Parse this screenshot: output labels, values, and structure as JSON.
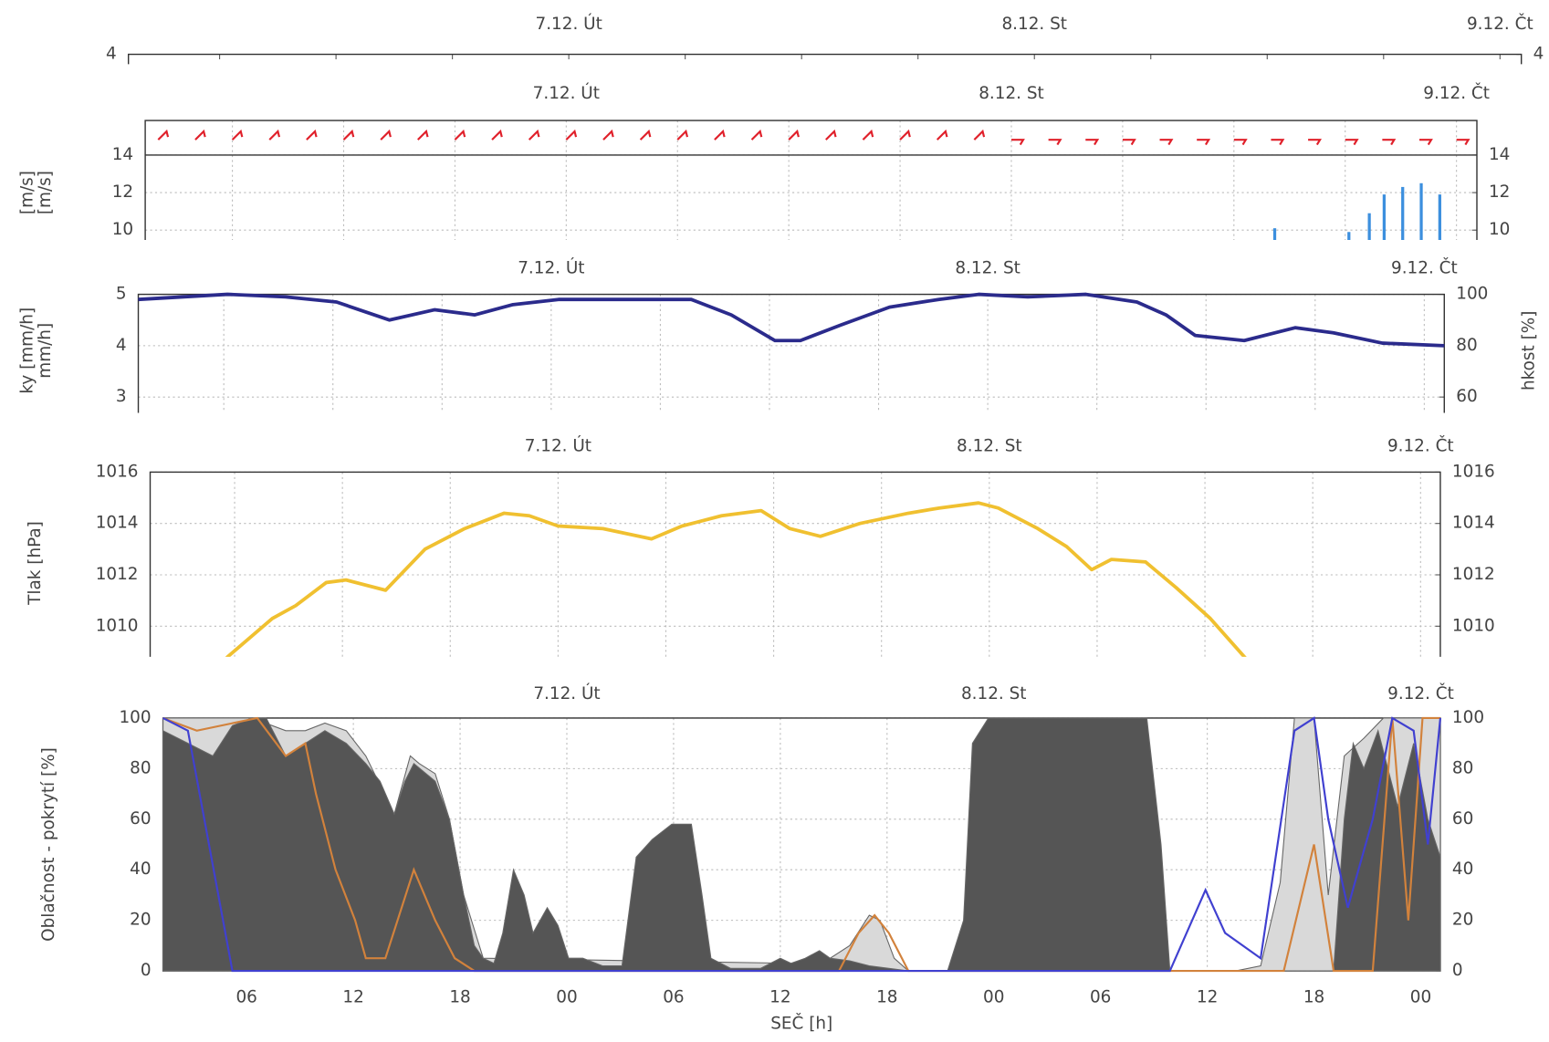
{
  "chart_data": [
    {
      "type": "line",
      "xlim": [
        1.3,
        73.1
      ],
      "date_ticks": [
        {
          "value": 24,
          "label": "7.12. Út"
        },
        {
          "value": 48,
          "label": "8.12. St"
        },
        {
          "value": 72,
          "label": "9.12. Čt"
        }
      ],
      "ylim": [
        0,
        4
      ],
      "yticks": [
        4
      ],
      "y2lim": [
        0,
        4
      ],
      "y2ticks": [
        4
      ]
    },
    {
      "type": "bar",
      "xlim": [
        1.3,
        73.1
      ],
      "grid": true,
      "date_ticks": [
        {
          "value": 24,
          "label": "7.12. Út"
        },
        {
          "value": 48,
          "label": "8.12. St"
        },
        {
          "value": 72,
          "label": "9.12. Čt"
        }
      ],
      "ylabels": [
        "[m/s]",
        "[m/s]"
      ],
      "ylim": [
        0,
        14
      ],
      "yticks": [
        14,
        12,
        10
      ],
      "y2lim": [
        0,
        14
      ],
      "y2ticks": [
        14,
        12,
        10
      ],
      "x": [
        62.2,
        66.2,
        67.3,
        68.1,
        69.1,
        70.1,
        71.1
      ],
      "values": [
        10.1,
        9.9,
        10.9,
        11.9,
        12.3,
        12.5,
        11.9
      ],
      "color": "#3c8fde",
      "barbs": {
        "color": "#e0202a",
        "x": [
          2,
          4,
          6,
          8,
          10,
          12,
          14,
          16,
          18,
          20,
          22,
          24,
          26,
          28,
          30,
          32,
          34,
          36,
          38,
          40,
          42,
          44,
          46,
          48,
          50,
          52,
          54,
          56,
          58,
          60,
          62,
          64,
          66,
          68,
          70,
          72
        ],
        "values": [
          225,
          225,
          225,
          225,
          225,
          225,
          225,
          225,
          225,
          225,
          225,
          225,
          225,
          225,
          225,
          225,
          225,
          225,
          225,
          225,
          225,
          225,
          225,
          270,
          270,
          270,
          270,
          270,
          270,
          270,
          270,
          270,
          270,
          270,
          270,
          270
        ]
      }
    },
    {
      "type": "line",
      "xlim": [
        1.3,
        73.1
      ],
      "grid": true,
      "date_ticks": [
        {
          "value": 24,
          "label": "7.12. Út"
        },
        {
          "value": 48,
          "label": "8.12. St"
        },
        {
          "value": 72,
          "label": "9.12. Čt"
        }
      ],
      "ylabels": [
        "ky [mm/h]",
        "mm/h]"
      ],
      "y2label": "hkost [%]",
      "ylim": [
        0,
        5
      ],
      "yticks": [
        5,
        4,
        3
      ],
      "y2lim": [
        0,
        100
      ],
      "y2ticks": [
        100,
        80,
        60
      ],
      "series": [
        {
          "color": "#2b2b8c",
          "axis": "y2",
          "x": [
            1.3,
            6.2,
            9.4,
            12.2,
            15.1,
            17.6,
            19.8,
            21.9,
            24.4,
            26.8,
            29.5,
            31.7,
            33.9,
            36.3,
            37.7,
            39.9,
            42.6,
            45.3,
            47.5,
            50.2,
            53.4,
            56.2,
            57.8,
            59.4,
            62.1,
            64.9,
            67.0,
            69.7,
            73.1
          ],
          "values": [
            98,
            100,
            99,
            97,
            90,
            94,
            92,
            96,
            98,
            98,
            98,
            98,
            92,
            82,
            82,
            88,
            95,
            98,
            100,
            99,
            100,
            97,
            92,
            84,
            82,
            87,
            85,
            81,
            80
          ]
        }
      ]
    },
    {
      "type": "line",
      "xlim": [
        1.3,
        73.1
      ],
      "grid": true,
      "date_ticks": [
        {
          "value": 24,
          "label": "7.12. Út"
        },
        {
          "value": 48,
          "label": "8.12. St"
        },
        {
          "value": 72,
          "label": "9.12. Čt"
        }
      ],
      "ylabels": [
        "Tlak [hPa]"
      ],
      "ylim": [
        1008,
        1016
      ],
      "yticks": [
        1016,
        1014,
        1012,
        1010
      ],
      "y2lim": [
        1008,
        1016
      ],
      "y2ticks": [
        1016,
        1014,
        1012,
        1010
      ],
      "series": [
        {
          "color": "#f0c030",
          "x": [
            3.9,
            5.6,
            8.1,
            9.4,
            11.1,
            12.2,
            14.4,
            16.6,
            18.8,
            21.0,
            22.4,
            24.0,
            26.5,
            29.2,
            30.9,
            33.1,
            35.3,
            36.9,
            38.6,
            40.8,
            43.5,
            45.2,
            47.4,
            48.5,
            50.7,
            52.3,
            53.7,
            54.8,
            56.7,
            58.4,
            60.3,
            62.2,
            63.9
          ],
          "values": [
            1007.5,
            1008.8,
            1010.3,
            1010.8,
            1011.7,
            1011.8,
            1011.4,
            1013.0,
            1013.8,
            1014.4,
            1014.3,
            1013.9,
            1013.8,
            1013.4,
            1013.9,
            1014.3,
            1014.5,
            1013.8,
            1013.5,
            1014.0,
            1014.4,
            1014.6,
            1014.8,
            1014.6,
            1013.8,
            1013.1,
            1012.2,
            1012.6,
            1012.5,
            1011.5,
            1010.3,
            1008.8,
            1007.5
          ]
        }
      ]
    },
    {
      "type": "area",
      "xlim": [
        1.3,
        73.1
      ],
      "grid": true,
      "date_ticks": [
        {
          "value": 24,
          "label": "7.12. Út"
        },
        {
          "value": 48,
          "label": "8.12. St"
        },
        {
          "value": 72,
          "label": "9.12. Čt"
        }
      ],
      "xticks": [
        {
          "value": 6,
          "label": "06"
        },
        12,
        18,
        {
          "value": 24,
          "label": "00"
        },
        {
          "value": 30,
          "label": "06"
        },
        {
          "value": 36,
          "label": "12"
        },
        {
          "value": 42,
          "label": "18"
        },
        {
          "value": 48,
          "label": "00"
        },
        {
          "value": 54,
          "label": "06"
        },
        {
          "value": 60,
          "label": "12"
        },
        {
          "value": 66,
          "label": "18"
        },
        {
          "value": 72,
          "label": "00"
        }
      ],
      "xlabel": "SEČ [h]",
      "ylabels": [
        "Oblačnost - pokrytí [%]"
      ],
      "ylim": [
        0,
        100
      ],
      "yticks": [
        0,
        20,
        40,
        60,
        80,
        100
      ],
      "y2lim": [
        0,
        100
      ],
      "y2ticks": [
        0,
        20,
        40,
        60,
        80,
        100
      ],
      "series": [
        {
          "style": "area",
          "color": "#d9d9d9",
          "x": [
            1.3,
            4.9,
            6.3,
            8.2,
            9.3,
            10.4,
            11.6,
            12.7,
            14.3,
            15.2,
            15.7,
            16.6,
            17.4,
            18.2,
            19.3,
            36.6,
            38.8,
            39.9,
            41.0,
            41.6,
            42.4,
            43.2,
            61.6,
            63.0,
            64.1,
            64.9,
            66.0,
            66.8,
            67.7,
            68.8,
            69.9,
            71.0,
            72.1,
            73.1
          ],
          "values": [
            100,
            100,
            100,
            95,
            95,
            98,
            95,
            85,
            62,
            85,
            82,
            78,
            60,
            30,
            5,
            3,
            5,
            10,
            22,
            20,
            5,
            0,
            0,
            2,
            35,
            100,
            100,
            30,
            85,
            92,
            100,
            100,
            100,
            100
          ]
        },
        {
          "style": "area",
          "color": "#555555",
          "x": [
            1.3,
            2.7,
            4.1,
            5.2,
            6.3,
            7.1,
            8.2,
            9.3,
            10.4,
            11.6,
            12.7,
            13.5,
            14.3,
            14.9,
            15.4,
            16.6,
            17.4,
            18.2,
            18.8,
            19.3,
            19.9,
            20.4,
            21.0,
            21.6,
            22.1,
            22.9,
            23.5,
            24.1,
            24.9,
            26.0,
            27.1,
            27.9,
            28.8,
            29.9,
            31.0,
            31.6,
            32.1,
            33.2,
            34.9,
            36.0,
            36.6,
            37.4,
            38.2,
            38.8,
            39.9,
            41.0,
            42.1,
            43.2,
            45.4,
            46.3,
            46.8,
            47.7,
            48.8,
            53.2,
            56.6,
            57.4,
            57.9,
            67.1,
            67.7,
            68.2,
            68.8,
            69.6,
            70.7,
            71.6,
            72.4,
            73.1
          ],
          "values": [
            95,
            90,
            85,
            97,
            100,
            100,
            85,
            90,
            95,
            90,
            82,
            75,
            62,
            75,
            82,
            75,
            60,
            30,
            10,
            5,
            3,
            15,
            40,
            30,
            15,
            25,
            18,
            5,
            5,
            2,
            2,
            45,
            52,
            58,
            58,
            30,
            5,
            1,
            1,
            5,
            3,
            5,
            8,
            5,
            4,
            2,
            1,
            0,
            0,
            20,
            90,
            100,
            100,
            100,
            100,
            50,
            0,
            0,
            60,
            90,
            80,
            95,
            65,
            90,
            60,
            45
          ]
        },
        {
          "style": "line",
          "color": "#d2823c",
          "x": [
            1.3,
            3.2,
            6.6,
            8.2,
            9.3,
            9.9,
            11.0,
            12.1,
            12.7,
            13.8,
            15.4,
            16.6,
            17.7,
            18.8,
            39.3,
            40.4,
            41.3,
            42.1,
            43.2,
            64.3,
            66.0,
            67.1,
            69.3,
            70.4,
            71.3,
            72.1,
            73.1
          ],
          "values": [
            100,
            95,
            100,
            85,
            90,
            70,
            40,
            20,
            5,
            5,
            40,
            20,
            5,
            0,
            0,
            15,
            22,
            15,
            0,
            0,
            50,
            0,
            0,
            100,
            20,
            100,
            100
          ]
        },
        {
          "style": "line",
          "color": "#4040d0",
          "x": [
            1.3,
            2.7,
            5.2,
            57.9,
            59.9,
            61.0,
            63.0,
            64.9,
            66.0,
            66.8,
            67.9,
            69.3,
            70.4,
            71.6,
            72.4,
            73.1
          ],
          "values": [
            100,
            95,
            0,
            0,
            32,
            15,
            5,
            95,
            100,
            60,
            25,
            60,
            100,
            95,
            50,
            100
          ]
        }
      ]
    }
  ]
}
